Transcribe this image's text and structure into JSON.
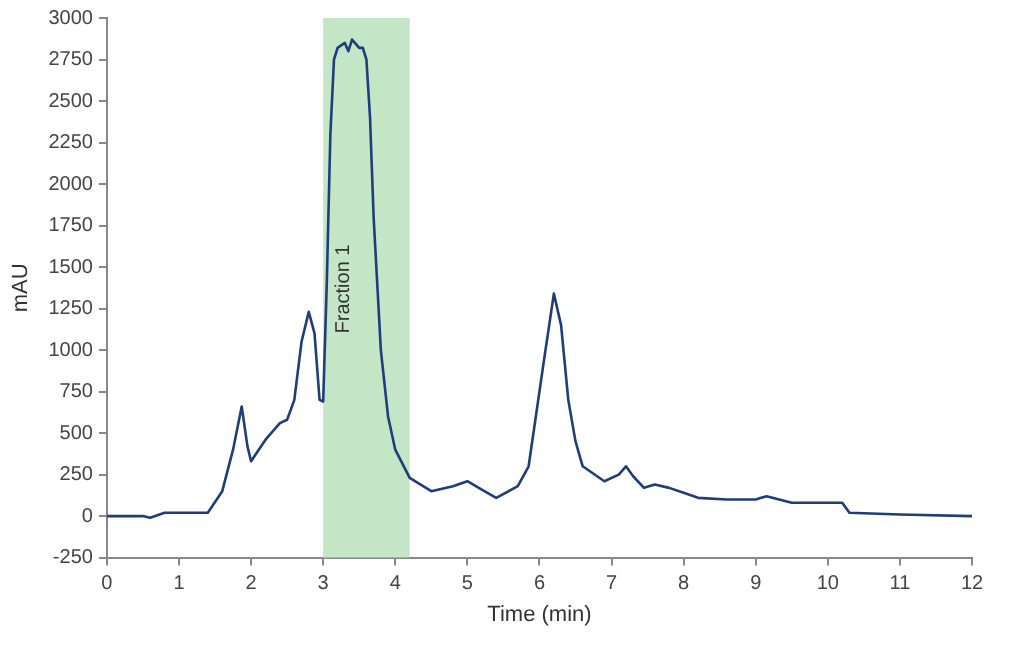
{
  "chart_data": {
    "type": "line",
    "xlabel": "Time (min)",
    "ylabel": "mAU",
    "series": [
      {
        "color": "#1f3d7a",
        "x": [
          0,
          0.5,
          0.6,
          0.8,
          1.0,
          1.4,
          1.6,
          1.75,
          1.87,
          1.95,
          2.0,
          2.2,
          2.4,
          2.5,
          2.6,
          2.7,
          2.8,
          2.88,
          2.95,
          3.0,
          3.05,
          3.1,
          3.15,
          3.2,
          3.3,
          3.35,
          3.4,
          3.5,
          3.55,
          3.6,
          3.65,
          3.7,
          3.8,
          3.9,
          4.0,
          4.2,
          4.5,
          4.8,
          5.0,
          5.2,
          5.4,
          5.7,
          5.85,
          5.95,
          6.05,
          6.2,
          6.3,
          6.4,
          6.5,
          6.6,
          6.9,
          7.1,
          7.2,
          7.3,
          7.45,
          7.6,
          7.8,
          8.0,
          8.2,
          8.6,
          9.0,
          9.15,
          9.5,
          10.2,
          10.3,
          11,
          12
        ],
        "values": [
          0,
          0,
          -10,
          20,
          20,
          20,
          150,
          400,
          660,
          420,
          330,
          460,
          560,
          580,
          700,
          1050,
          1230,
          1100,
          700,
          690,
          1400,
          2300,
          2750,
          2820,
          2850,
          2800,
          2870,
          2820,
          2820,
          2750,
          2400,
          1800,
          1000,
          600,
          400,
          230,
          150,
          180,
          210,
          160,
          110,
          180,
          300,
          600,
          900,
          1340,
          1150,
          700,
          450,
          300,
          210,
          250,
          300,
          240,
          170,
          190,
          170,
          140,
          110,
          100,
          100,
          120,
          80,
          80,
          20,
          10,
          0
        ]
      }
    ],
    "xlim": [
      0,
      12
    ],
    "xticks": [
      0,
      1,
      2,
      3,
      4,
      5,
      6,
      7,
      8,
      9,
      10,
      11,
      12
    ],
    "ylim": [
      -250,
      3000
    ],
    "yticks": [
      -250,
      0,
      250,
      500,
      750,
      1000,
      1250,
      1500,
      1750,
      2000,
      2250,
      2500,
      2750,
      3000
    ],
    "bands": [
      {
        "axis": "x",
        "from": 3,
        "to": 4.2,
        "label": "Fraction 1",
        "color": "#c4e6c6"
      }
    ],
    "grid": false,
    "legend": false,
    "marker": "none",
    "line_style": "solid"
  }
}
